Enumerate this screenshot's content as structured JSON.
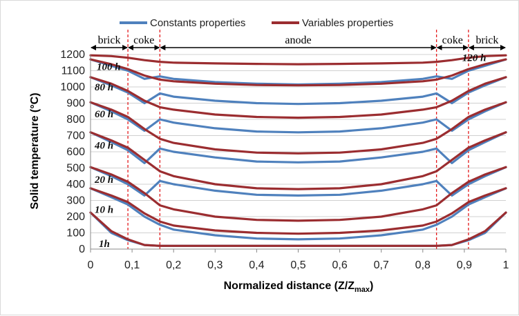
{
  "chart_data": {
    "type": "line",
    "xlabel": "Normalized distance (Z/Z",
    "xlabel_sub": "max",
    "xlabel_close": ")",
    "ylabel": "Solid temperature (°C)",
    "xlim": [
      0,
      1
    ],
    "ylim": [
      0,
      1200
    ],
    "x_ticks": [
      0,
      0.1,
      0.2,
      0.3,
      0.4,
      0.5,
      0.6,
      0.7,
      0.8,
      0.9,
      1
    ],
    "x_tick_labels": [
      "0",
      "0,1",
      "0,2",
      "0,3",
      "0,4",
      "0,5",
      "0,6",
      "0,7",
      "0,8",
      "0,9",
      "1"
    ],
    "y_ticks": [
      0,
      100,
      200,
      300,
      400,
      500,
      600,
      700,
      800,
      900,
      1000,
      1100,
      1200
    ],
    "y_tick_labels": [
      "0",
      "100",
      "200",
      "300",
      "400",
      "500",
      "600",
      "700",
      "800",
      "900",
      "1000",
      "1100",
      "1200"
    ],
    "grid": true,
    "legend": {
      "placement": "top",
      "entries": [
        {
          "name": "Constants properties",
          "color": "#4f81bd"
        },
        {
          "name": "Variables properties",
          "color": "#9b2d30"
        }
      ]
    },
    "boundaries": [
      0.09,
      0.167,
      0.833,
      0.91
    ],
    "regions": [
      {
        "label": "brick",
        "from": 0,
        "to": 0.09
      },
      {
        "label": "coke",
        "from": 0.09,
        "to": 0.167
      },
      {
        "label": "anode",
        "from": 0.167,
        "to": 0.833
      },
      {
        "label": "coke",
        "from": 0.833,
        "to": 0.91
      },
      {
        "label": "brick",
        "from": 0.91,
        "to": 1
      }
    ],
    "x": [
      0,
      0.05,
      0.09,
      0.13,
      0.167,
      0.2,
      0.3,
      0.4,
      0.5,
      0.6,
      0.7,
      0.8,
      0.833,
      0.87,
      0.91,
      0.95,
      1
    ],
    "curve_annotations": [
      {
        "label": "1h",
        "x": 0.02,
        "y": 35
      },
      {
        "label": "10 h",
        "x": 0.01,
        "y": 245
      },
      {
        "label": "20 h",
        "x": 0.01,
        "y": 430
      },
      {
        "label": "40 h",
        "x": 0.01,
        "y": 640
      },
      {
        "label": "60 h",
        "x": 0.01,
        "y": 835
      },
      {
        "label": "80 h",
        "x": 0.01,
        "y": 1000
      },
      {
        "label": "100 h",
        "x": 0.015,
        "y": 1125
      },
      {
        "label": "120 h",
        "x": 0.895,
        "y": 1180
      }
    ],
    "series": [
      {
        "name": "Constants properties",
        "time": "1h",
        "values": [
          225,
          100,
          55,
          25,
          20,
          20,
          20,
          20,
          20,
          20,
          20,
          20,
          20,
          25,
          55,
          100,
          225
        ]
      },
      {
        "name": "Constants properties",
        "time": "10 h",
        "values": [
          375,
          320,
          275,
          200,
          150,
          120,
          85,
          65,
          60,
          65,
          85,
          120,
          150,
          200,
          275,
          320,
          375
        ]
      },
      {
        "name": "Constants properties",
        "time": "20 h",
        "values": [
          505,
          450,
          400,
          330,
          420,
          400,
          360,
          335,
          330,
          335,
          360,
          400,
          420,
          330,
          400,
          450,
          505
        ]
      },
      {
        "name": "Constants properties",
        "time": "40 h",
        "values": [
          720,
          660,
          610,
          530,
          620,
          600,
          565,
          540,
          535,
          540,
          565,
          600,
          620,
          530,
          610,
          660,
          720
        ]
      },
      {
        "name": "Constants properties",
        "time": "60 h",
        "values": [
          905,
          850,
          800,
          730,
          800,
          780,
          745,
          725,
          720,
          725,
          745,
          780,
          800,
          730,
          800,
          850,
          905
        ]
      },
      {
        "name": "Constants properties",
        "time": "80 h",
        "values": [
          1060,
          1010,
          965,
          900,
          960,
          940,
          915,
          900,
          895,
          900,
          915,
          940,
          960,
          900,
          965,
          1010,
          1060
        ]
      },
      {
        "name": "Constants properties",
        "time": "100 h",
        "values": [
          1170,
          1130,
          1100,
          1050,
          1065,
          1050,
          1030,
          1020,
          1015,
          1020,
          1030,
          1050,
          1065,
          1050,
          1100,
          1130,
          1170
        ]
      },
      {
        "name": "Variables properties",
        "time": "1h",
        "values": [
          225,
          110,
          60,
          25,
          20,
          20,
          20,
          20,
          20,
          20,
          20,
          20,
          20,
          25,
          60,
          110,
          225
        ]
      },
      {
        "name": "Variables properties",
        "time": "10 h",
        "values": [
          375,
          330,
          290,
          220,
          170,
          145,
          115,
          100,
          95,
          100,
          115,
          145,
          170,
          220,
          290,
          330,
          375
        ]
      },
      {
        "name": "Variables properties",
        "time": "20 h",
        "values": [
          505,
          460,
          415,
          345,
          270,
          245,
          200,
          180,
          175,
          180,
          200,
          245,
          270,
          345,
          415,
          460,
          505
        ]
      },
      {
        "name": "Variables properties",
        "time": "40 h",
        "values": [
          720,
          670,
          625,
          550,
          480,
          450,
          400,
          375,
          370,
          375,
          400,
          450,
          480,
          550,
          625,
          670,
          720
        ]
      },
      {
        "name": "Variables properties",
        "time": "60 h",
        "values": [
          905,
          860,
          815,
          740,
          680,
          655,
          615,
          595,
          590,
          595,
          615,
          655,
          680,
          740,
          815,
          860,
          905
        ]
      },
      {
        "name": "Variables properties",
        "time": "80 h",
        "values": [
          1060,
          1020,
          975,
          915,
          875,
          860,
          830,
          815,
          810,
          815,
          830,
          860,
          875,
          915,
          975,
          1020,
          1060
        ]
      },
      {
        "name": "Variables properties",
        "time": "100 h",
        "values": [
          1170,
          1140,
          1110,
          1070,
          1045,
          1035,
          1020,
          1012,
          1010,
          1012,
          1020,
          1035,
          1045,
          1070,
          1110,
          1140,
          1170
        ]
      },
      {
        "name": "Variables properties",
        "time": "120 h",
        "values": [
          1195,
          1190,
          1180,
          1165,
          1155,
          1150,
          1145,
          1142,
          1140,
          1142,
          1145,
          1150,
          1155,
          1165,
          1180,
          1190,
          1195
        ]
      }
    ]
  }
}
